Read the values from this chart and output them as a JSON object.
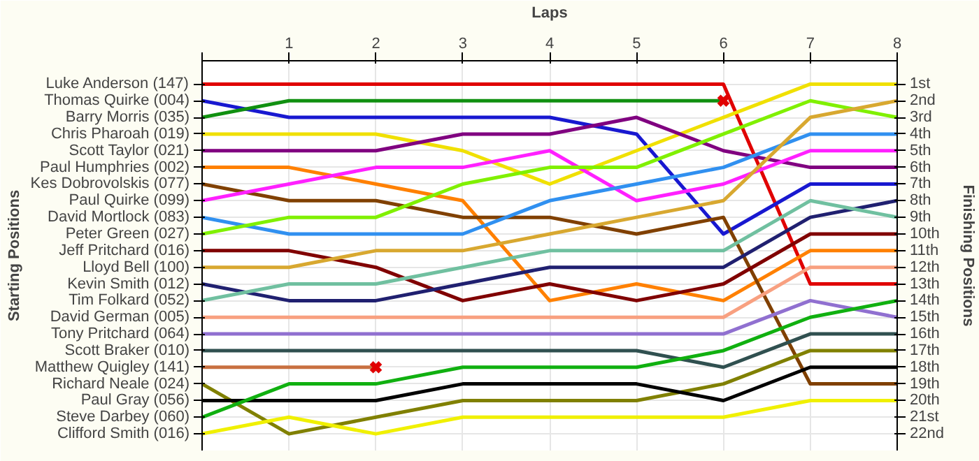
{
  "chart_data": {
    "type": "line",
    "xlabel": "Laps",
    "annotations": [
      "Starting Positions"
    ],
    "y2label": "Finishing Positions",
    "x": [
      0,
      1,
      2,
      3,
      4,
      5,
      6,
      7,
      8
    ],
    "xlim": [
      0,
      8
    ],
    "xticks": [
      {
        "value": 0,
        "label": null
      },
      1,
      2,
      3,
      4,
      5,
      6,
      7,
      8
    ],
    "y_categories": [
      "Luke Anderson (147)",
      "Thomas Quirke (004)",
      "Barry Morris (035)",
      "Chris Pharoah (019)",
      "Scott Taylor (021)",
      "Paul Humphries (002)",
      "Kes Dobrovolskis (077)",
      "Paul Quirke (099)",
      "David Mortlock (083)",
      "Peter Green (027)",
      "Jeff Pritchard (016)",
      "Lloyd Bell (100)",
      "Kevin Smith (012)",
      "Tim Folkard (052)",
      "David German (005)",
      "Tony Pritchard (064)",
      "Scott Braker (010)",
      "Matthew Quigley (141)",
      "Richard Neale (024)",
      "Paul Gray (056)",
      "Steve Darbey (060)",
      "Clifford Smith (016)"
    ],
    "y2lim": [
      23,
      -0.4
    ],
    "y2ticks": [
      {
        "value": 1,
        "label": "1st"
      },
      {
        "value": 2,
        "label": "2nd"
      },
      {
        "value": 3,
        "label": "3rd"
      },
      {
        "value": 4,
        "label": "4th"
      },
      {
        "value": 5,
        "label": "5th"
      },
      {
        "value": 6,
        "label": "6th"
      },
      {
        "value": 7,
        "label": "7th"
      },
      {
        "value": 8,
        "label": "8th"
      },
      {
        "value": 9,
        "label": "9th"
      },
      {
        "value": 10,
        "label": "10th"
      },
      {
        "value": 11,
        "label": "11th"
      },
      {
        "value": 12,
        "label": "12th"
      },
      {
        "value": 13,
        "label": "13th"
      },
      {
        "value": 14,
        "label": "14th"
      },
      {
        "value": 15,
        "label": "15th"
      },
      {
        "value": 16,
        "label": "16th"
      },
      {
        "value": 17,
        "label": "17th"
      },
      {
        "value": 18,
        "label": "18th"
      },
      {
        "value": 19,
        "label": "19th"
      },
      {
        "value": 20,
        "label": "20th"
      },
      {
        "value": 21,
        "label": "21st"
      },
      {
        "value": 22,
        "label": "22nd"
      }
    ],
    "grid": true,
    "series": [
      {
        "axis": "y2",
        "color": "#e00000",
        "values": [
          1,
          1,
          1,
          1,
          1,
          1,
          1,
          13,
          13
        ]
      },
      {
        "axis": "y2",
        "color": "#1818d0",
        "values": [
          2,
          3,
          3,
          3,
          3,
          4,
          10,
          7,
          7
        ]
      },
      {
        "axis": "y2",
        "color": "#109010",
        "values": [
          3,
          2,
          2,
          2,
          2,
          2,
          2,
          null,
          null
        ]
      },
      {
        "axis": "y2",
        "color": "#f0e000",
        "values": [
          4,
          4,
          4,
          5,
          7,
          5,
          3,
          1,
          1
        ]
      },
      {
        "axis": "y2",
        "color": "#800080",
        "values": [
          5,
          5,
          5,
          4,
          4,
          3,
          5,
          6,
          6
        ]
      },
      {
        "axis": "y2",
        "color": "#ff8000",
        "values": [
          6,
          6,
          7,
          8,
          14,
          13,
          14,
          11,
          11
        ]
      },
      {
        "axis": "y2",
        "color": "#804000",
        "values": [
          7,
          8,
          8,
          9,
          9,
          10,
          9,
          19,
          19
        ]
      },
      {
        "axis": "y2",
        "color": "#ff20ff",
        "values": [
          8,
          7,
          6,
          6,
          5,
          8,
          7,
          5,
          5
        ]
      },
      {
        "axis": "y2",
        "color": "#3090f0",
        "values": [
          9,
          10,
          10,
          10,
          8,
          7,
          6,
          4,
          4
        ]
      },
      {
        "axis": "y2",
        "color": "#80f000",
        "values": [
          10,
          9,
          9,
          7,
          6,
          6,
          4,
          2,
          3
        ]
      },
      {
        "axis": "y2",
        "color": "#800000",
        "values": [
          11,
          11,
          12,
          14,
          13,
          14,
          13,
          10,
          10
        ]
      },
      {
        "axis": "y2",
        "color": "#d8a830",
        "values": [
          12,
          12,
          11,
          11,
          10,
          9,
          8,
          3,
          2
        ]
      },
      {
        "axis": "y2",
        "color": "#202070",
        "values": [
          13,
          14,
          14,
          13,
          12,
          12,
          12,
          9,
          8
        ]
      },
      {
        "axis": "y2",
        "color": "#70c0a0",
        "values": [
          14,
          13,
          13,
          12,
          11,
          11,
          11,
          8,
          9
        ]
      },
      {
        "axis": "y2",
        "color": "#f8a080",
        "values": [
          15,
          15,
          15,
          15,
          15,
          15,
          15,
          12,
          12
        ]
      },
      {
        "axis": "y2",
        "color": "#9070d0",
        "values": [
          16,
          16,
          16,
          16,
          16,
          16,
          16,
          14,
          15
        ]
      },
      {
        "axis": "y2",
        "color": "#305050",
        "values": [
          17,
          17,
          17,
          17,
          17,
          17,
          18,
          16,
          16
        ]
      },
      {
        "axis": "y2",
        "color": "#c87040",
        "values": [
          18,
          18,
          18,
          null,
          null,
          null,
          null,
          null,
          null
        ]
      },
      {
        "axis": "y2",
        "color": "#808000",
        "values": [
          19,
          22,
          21,
          20,
          20,
          20,
          19,
          17,
          17
        ]
      },
      {
        "axis": "y2",
        "color": "#000000",
        "values": [
          20,
          20,
          20,
          19,
          19,
          19,
          20,
          18,
          18
        ]
      },
      {
        "axis": "y2",
        "color": "#10b010",
        "values": [
          21,
          19,
          19,
          18,
          18,
          18,
          17,
          15,
          14
        ]
      },
      {
        "axis": "y2",
        "color": "#f0f000",
        "values": [
          22,
          21,
          22,
          21,
          21,
          21,
          21,
          20,
          20
        ]
      },
      {
        "axis": "y2",
        "type": "scatter",
        "marker": "cross",
        "color": "#e00000",
        "x": [
          6,
          2
        ],
        "values": [
          2,
          18
        ]
      }
    ]
  }
}
